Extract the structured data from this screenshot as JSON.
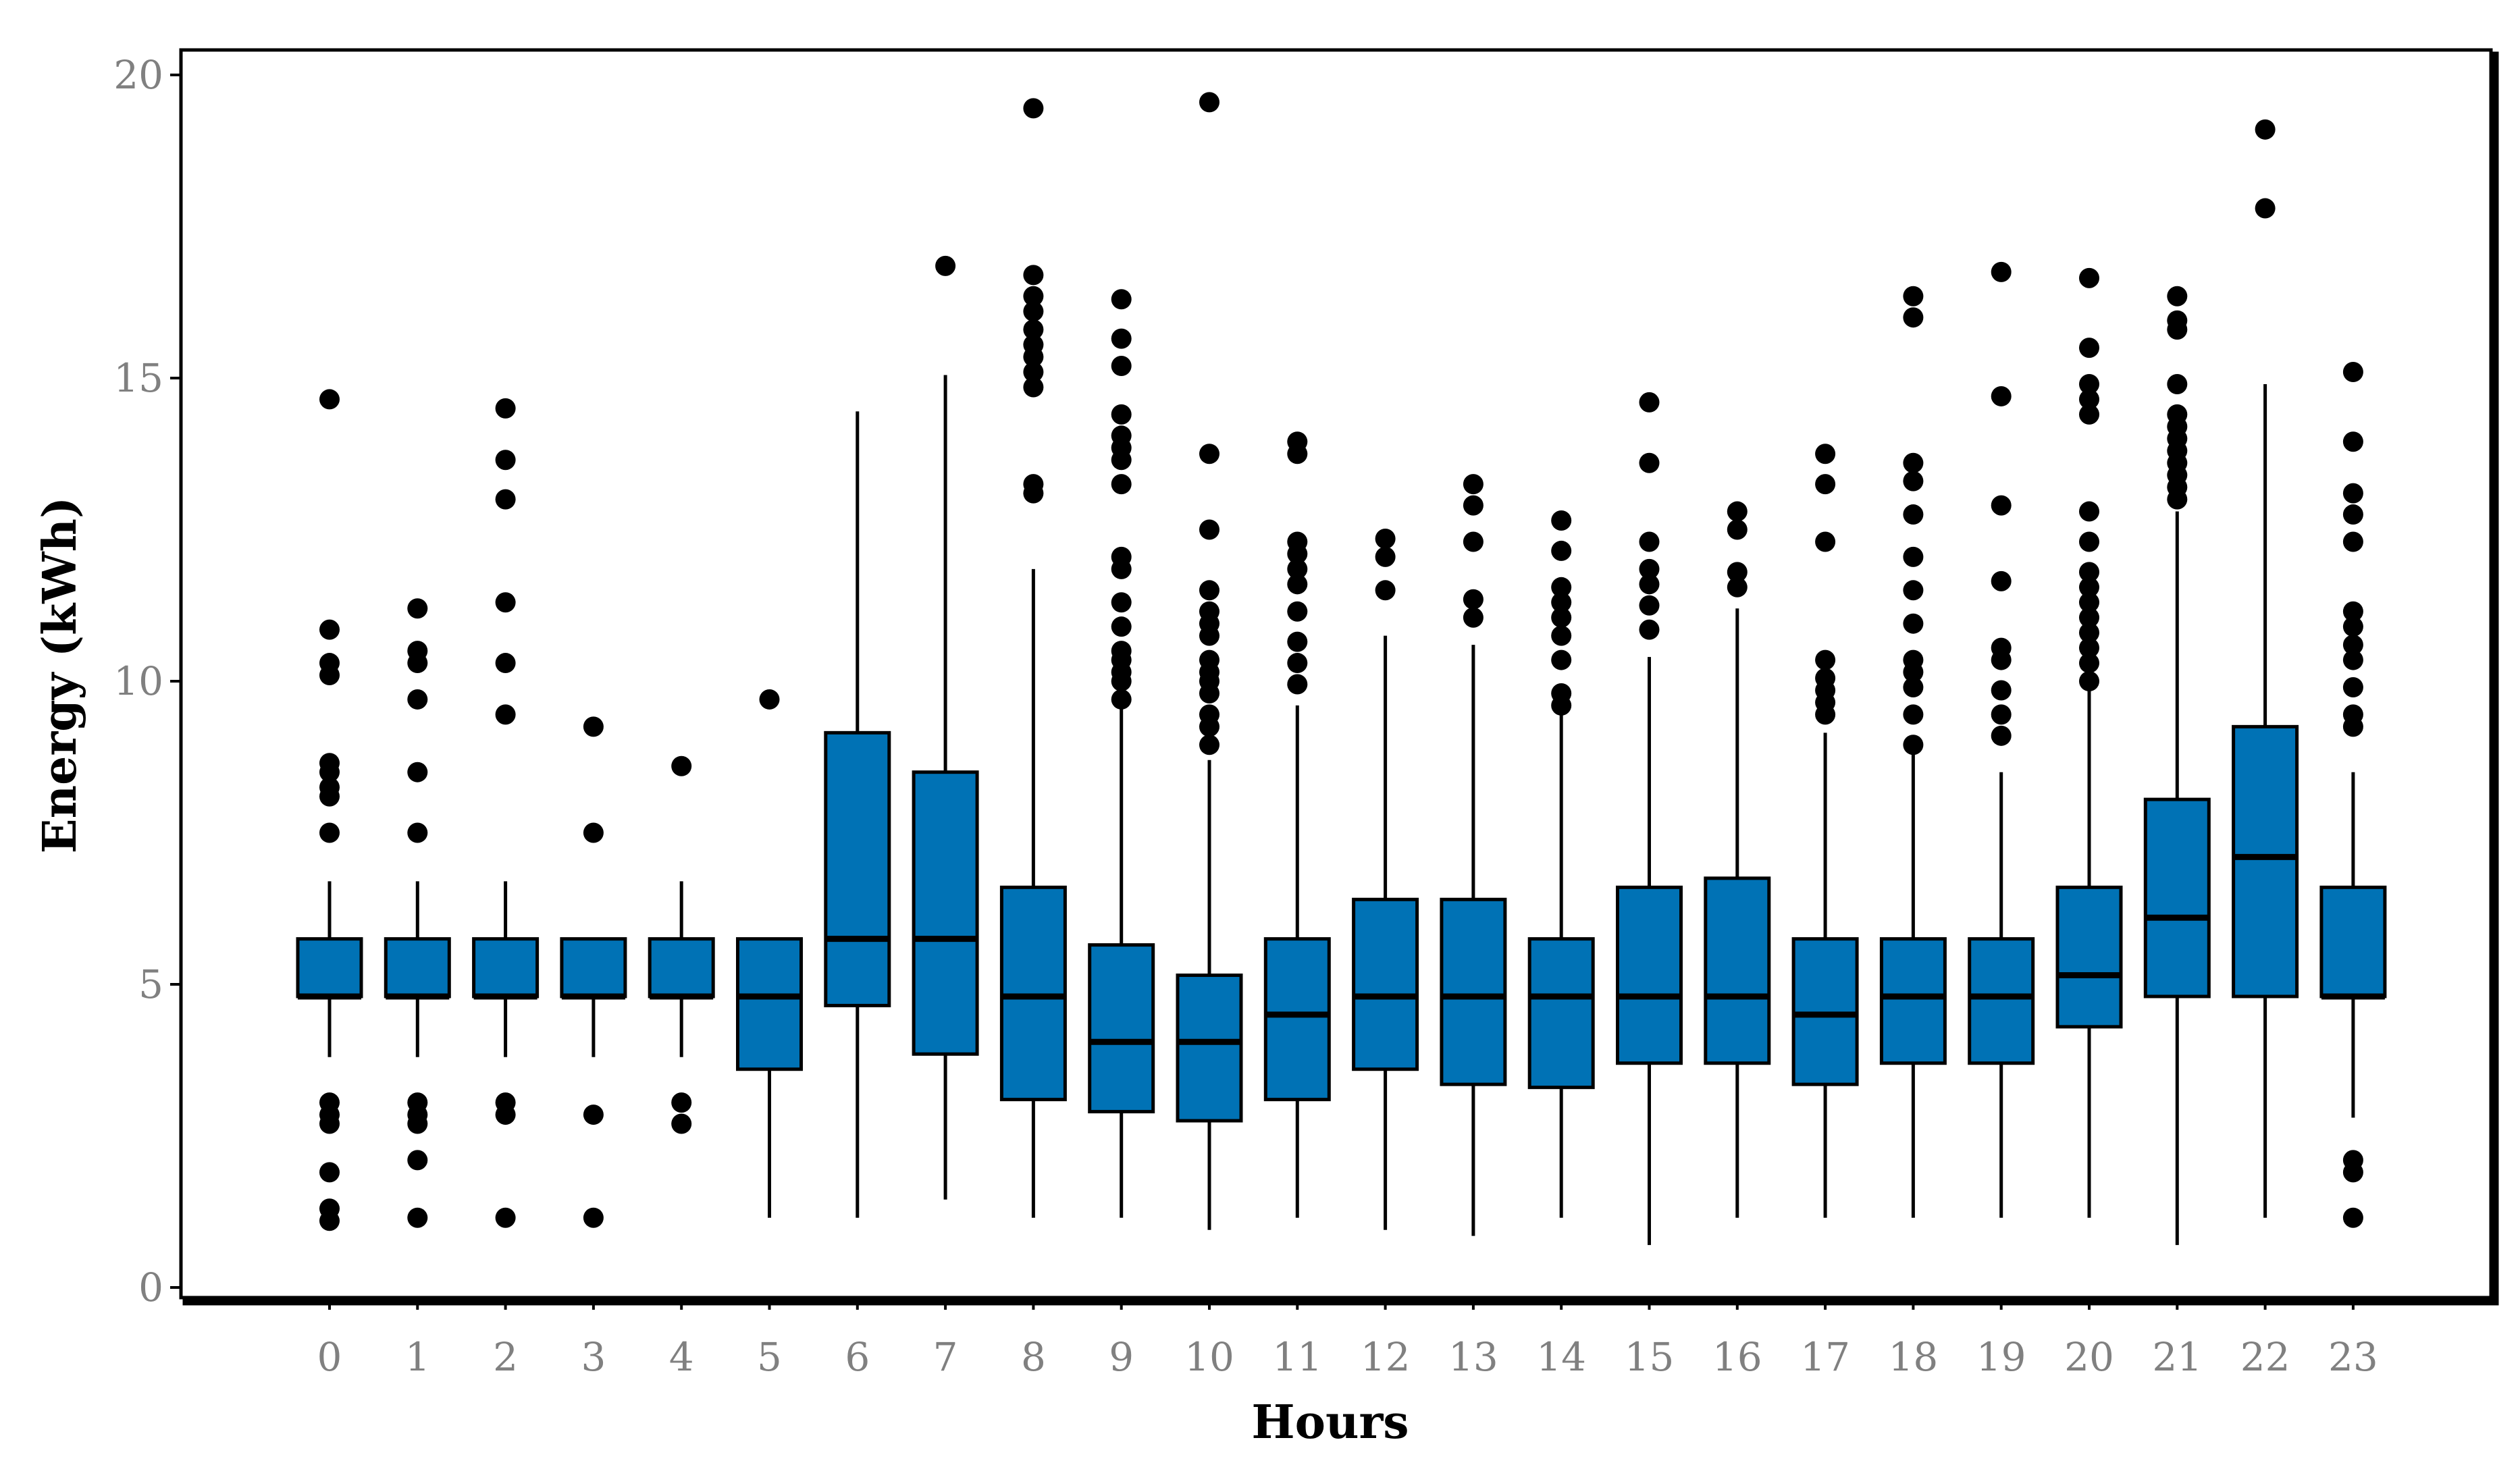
{
  "chart_data": {
    "type": "box",
    "xlabel": "Hours",
    "ylabel": "Energy (kWh)",
    "ylim": [
      0,
      20
    ],
    "yticks": [
      0,
      5,
      10,
      15,
      20
    ],
    "categories": [
      "0",
      "1",
      "2",
      "3",
      "4",
      "5",
      "6",
      "7",
      "8",
      "9",
      "10",
      "11",
      "12",
      "13",
      "14",
      "15",
      "16",
      "17",
      "18",
      "19",
      "20",
      "21",
      "22",
      "23"
    ],
    "box_color": "#0072B5",
    "outline_color": "#000000",
    "grid": false,
    "boxes": [
      {
        "hour": "0",
        "whisker_low": 3.8,
        "q1": 4.8,
        "median": 4.8,
        "q3": 5.75,
        "whisker_high": 6.7,
        "outliers": [
          1.1,
          1.3,
          1.9,
          2.7,
          2.85,
          3.05,
          7.5,
          8.1,
          8.25,
          8.5,
          8.65,
          10.1,
          10.3,
          10.85,
          14.65
        ]
      },
      {
        "hour": "1",
        "whisker_low": 3.8,
        "q1": 4.8,
        "median": 4.8,
        "q3": 5.75,
        "whisker_high": 6.7,
        "outliers": [
          1.15,
          2.1,
          2.7,
          2.85,
          3.05,
          7.5,
          8.5,
          9.7,
          10.3,
          10.5,
          11.2
        ]
      },
      {
        "hour": "2",
        "whisker_low": 3.8,
        "q1": 4.8,
        "median": 4.8,
        "q3": 5.75,
        "whisker_high": 6.7,
        "outliers": [
          1.15,
          2.85,
          3.05,
          9.45,
          10.3,
          11.3,
          13.0,
          13.65,
          14.5
        ]
      },
      {
        "hour": "3",
        "whisker_low": 3.8,
        "q1": 4.8,
        "median": 4.8,
        "q3": 5.75,
        "whisker_high": 5.75,
        "outliers": [
          1.15,
          2.85,
          7.5,
          9.25
        ]
      },
      {
        "hour": "4",
        "whisker_low": 3.8,
        "q1": 4.8,
        "median": 4.8,
        "q3": 5.75,
        "whisker_high": 6.7,
        "outliers": [
          2.7,
          3.05,
          8.6
        ]
      },
      {
        "hour": "5",
        "whisker_low": 1.15,
        "q1": 3.6,
        "median": 4.8,
        "q3": 5.75,
        "whisker_high": 5.75,
        "outliers": [
          9.7
        ]
      },
      {
        "hour": "6",
        "whisker_low": 1.15,
        "q1": 4.65,
        "median": 5.75,
        "q3": 9.15,
        "whisker_high": 14.45,
        "outliers": []
      },
      {
        "hour": "7",
        "whisker_low": 1.45,
        "q1": 3.85,
        "median": 5.75,
        "q3": 8.5,
        "whisker_high": 15.05,
        "outliers": [
          16.85
        ]
      },
      {
        "hour": "8",
        "whisker_low": 1.15,
        "q1": 3.1,
        "median": 4.8,
        "q3": 6.6,
        "whisker_high": 11.85,
        "outliers": [
          13.1,
          13.25,
          14.85,
          15.1,
          15.35,
          15.55,
          15.8,
          16.1,
          16.35,
          16.7,
          19.45
        ]
      },
      {
        "hour": "9",
        "whisker_low": 1.15,
        "q1": 2.9,
        "median": 4.05,
        "q3": 5.65,
        "whisker_high": 9.55,
        "outliers": [
          9.7,
          10.0,
          10.15,
          10.35,
          10.5,
          10.9,
          11.3,
          11.85,
          12.05,
          13.25,
          13.65,
          13.85,
          14.05,
          14.4,
          15.2,
          15.65,
          16.3
        ]
      },
      {
        "hour": "10",
        "whisker_low": 0.95,
        "q1": 2.75,
        "median": 4.05,
        "q3": 5.15,
        "whisker_high": 8.7,
        "outliers": [
          8.95,
          9.25,
          9.45,
          9.8,
          10.0,
          10.15,
          10.35,
          10.75,
          10.95,
          11.15,
          11.5,
          12.5,
          13.75,
          19.55
        ]
      },
      {
        "hour": "11",
        "whisker_low": 1.15,
        "q1": 3.1,
        "median": 4.5,
        "q3": 5.75,
        "whisker_high": 9.6,
        "outliers": [
          9.95,
          10.3,
          10.65,
          11.15,
          11.6,
          11.85,
          12.1,
          12.3,
          13.75,
          13.95
        ]
      },
      {
        "hour": "12",
        "whisker_low": 0.95,
        "q1": 3.6,
        "median": 4.8,
        "q3": 6.4,
        "whisker_high": 10.75,
        "outliers": [
          11.5,
          12.05,
          12.35
        ]
      },
      {
        "hour": "13",
        "whisker_low": 0.85,
        "q1": 3.35,
        "median": 4.8,
        "q3": 6.4,
        "whisker_high": 10.6,
        "outliers": [
          11.05,
          11.35,
          12.3,
          12.9,
          13.25
        ]
      },
      {
        "hour": "14",
        "whisker_low": 1.15,
        "q1": 3.3,
        "median": 4.8,
        "q3": 5.75,
        "whisker_high": 9.5,
        "outliers": [
          9.6,
          9.8,
          10.35,
          10.75,
          11.05,
          11.3,
          11.55,
          12.15,
          12.65
        ]
      },
      {
        "hour": "15",
        "whisker_low": 0.7,
        "q1": 3.7,
        "median": 4.8,
        "q3": 6.6,
        "whisker_high": 10.4,
        "outliers": [
          10.85,
          11.25,
          11.6,
          11.85,
          12.3,
          13.6,
          14.6
        ]
      },
      {
        "hour": "16",
        "whisker_low": 1.15,
        "q1": 3.7,
        "median": 4.8,
        "q3": 6.75,
        "whisker_high": 11.2,
        "outliers": [
          11.55,
          11.8,
          12.5,
          12.8
        ]
      },
      {
        "hour": "17",
        "whisker_low": 1.15,
        "q1": 3.35,
        "median": 4.5,
        "q3": 5.75,
        "whisker_high": 9.15,
        "outliers": [
          9.45,
          9.65,
          9.85,
          10.05,
          10.35,
          12.3,
          13.25,
          13.75
        ]
      },
      {
        "hour": "18",
        "whisker_low": 1.15,
        "q1": 3.7,
        "median": 4.8,
        "q3": 5.75,
        "whisker_high": 8.9,
        "outliers": [
          8.95,
          9.45,
          9.9,
          10.15,
          10.35,
          10.95,
          11.5,
          12.05,
          12.75,
          13.3,
          13.6,
          16.0,
          16.35
        ]
      },
      {
        "hour": "19",
        "whisker_low": 1.15,
        "q1": 3.7,
        "median": 4.8,
        "q3": 5.75,
        "whisker_high": 8.5,
        "outliers": [
          9.1,
          9.45,
          9.85,
          10.35,
          10.55,
          11.65,
          12.9,
          14.7,
          16.75
        ]
      },
      {
        "hour": "20",
        "whisker_low": 1.15,
        "q1": 4.3,
        "median": 5.15,
        "q3": 6.6,
        "whisker_high": 9.85,
        "outliers": [
          10.0,
          10.3,
          10.55,
          10.8,
          11.05,
          11.3,
          11.55,
          11.8,
          12.3,
          12.8,
          14.4,
          14.65,
          14.9,
          15.5,
          16.65
        ]
      },
      {
        "hour": "21",
        "whisker_low": 0.7,
        "q1": 4.8,
        "median": 6.1,
        "q3": 8.05,
        "whisker_high": 12.8,
        "outliers": [
          13.0,
          13.2,
          13.4,
          13.6,
          13.8,
          14.0,
          14.2,
          14.4,
          14.9,
          15.8,
          15.95,
          16.35
        ]
      },
      {
        "hour": "22",
        "whisker_low": 1.15,
        "q1": 4.8,
        "median": 7.1,
        "q3": 9.25,
        "whisker_high": 14.9,
        "outliers": [
          17.8,
          19.1
        ]
      },
      {
        "hour": "23",
        "whisker_low": 2.8,
        "q1": 4.8,
        "median": 4.8,
        "q3": 6.6,
        "whisker_high": 8.5,
        "outliers": [
          1.15,
          1.9,
          2.1,
          9.25,
          9.45,
          9.9,
          10.35,
          10.6,
          10.9,
          11.15,
          12.3,
          12.75,
          13.1,
          13.95,
          15.1
        ]
      }
    ]
  }
}
